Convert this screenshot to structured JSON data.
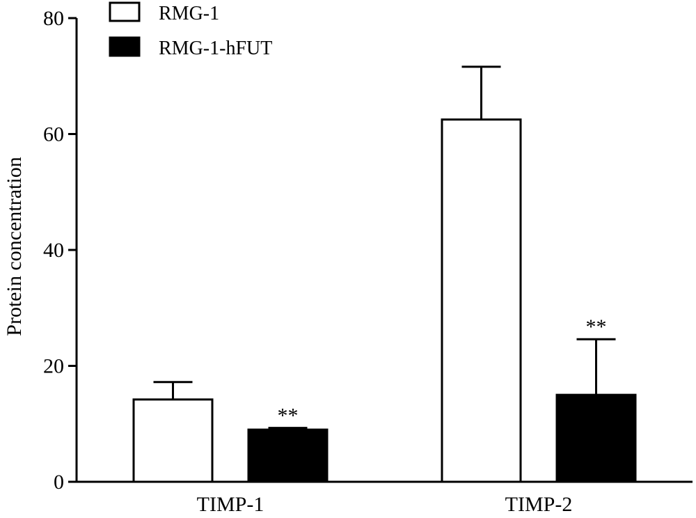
{
  "chart_data": {
    "type": "bar",
    "categories": [
      "TIMP-1",
      "TIMP-2"
    ],
    "series": [
      {
        "name": "RMG-1",
        "fill": "#ffffff",
        "values": [
          14.2,
          62.5
        ],
        "errors": [
          3.0,
          9.1
        ],
        "significance": [
          "",
          ""
        ]
      },
      {
        "name": "RMG-1-hFUT",
        "fill": "#000000",
        "values": [
          9.0,
          15.0
        ],
        "errors": [
          0.3,
          9.6
        ],
        "significance": [
          "**",
          "**"
        ]
      }
    ],
    "ylabel": "Protein concentration",
    "xlabel": "",
    "ylim": [
      0,
      80
    ],
    "yticks": [
      0,
      20,
      40,
      60,
      80
    ],
    "grid": false,
    "legend_position": "top-left",
    "colors": {
      "axis": "#000000",
      "bar_stroke": "#000000"
    }
  }
}
